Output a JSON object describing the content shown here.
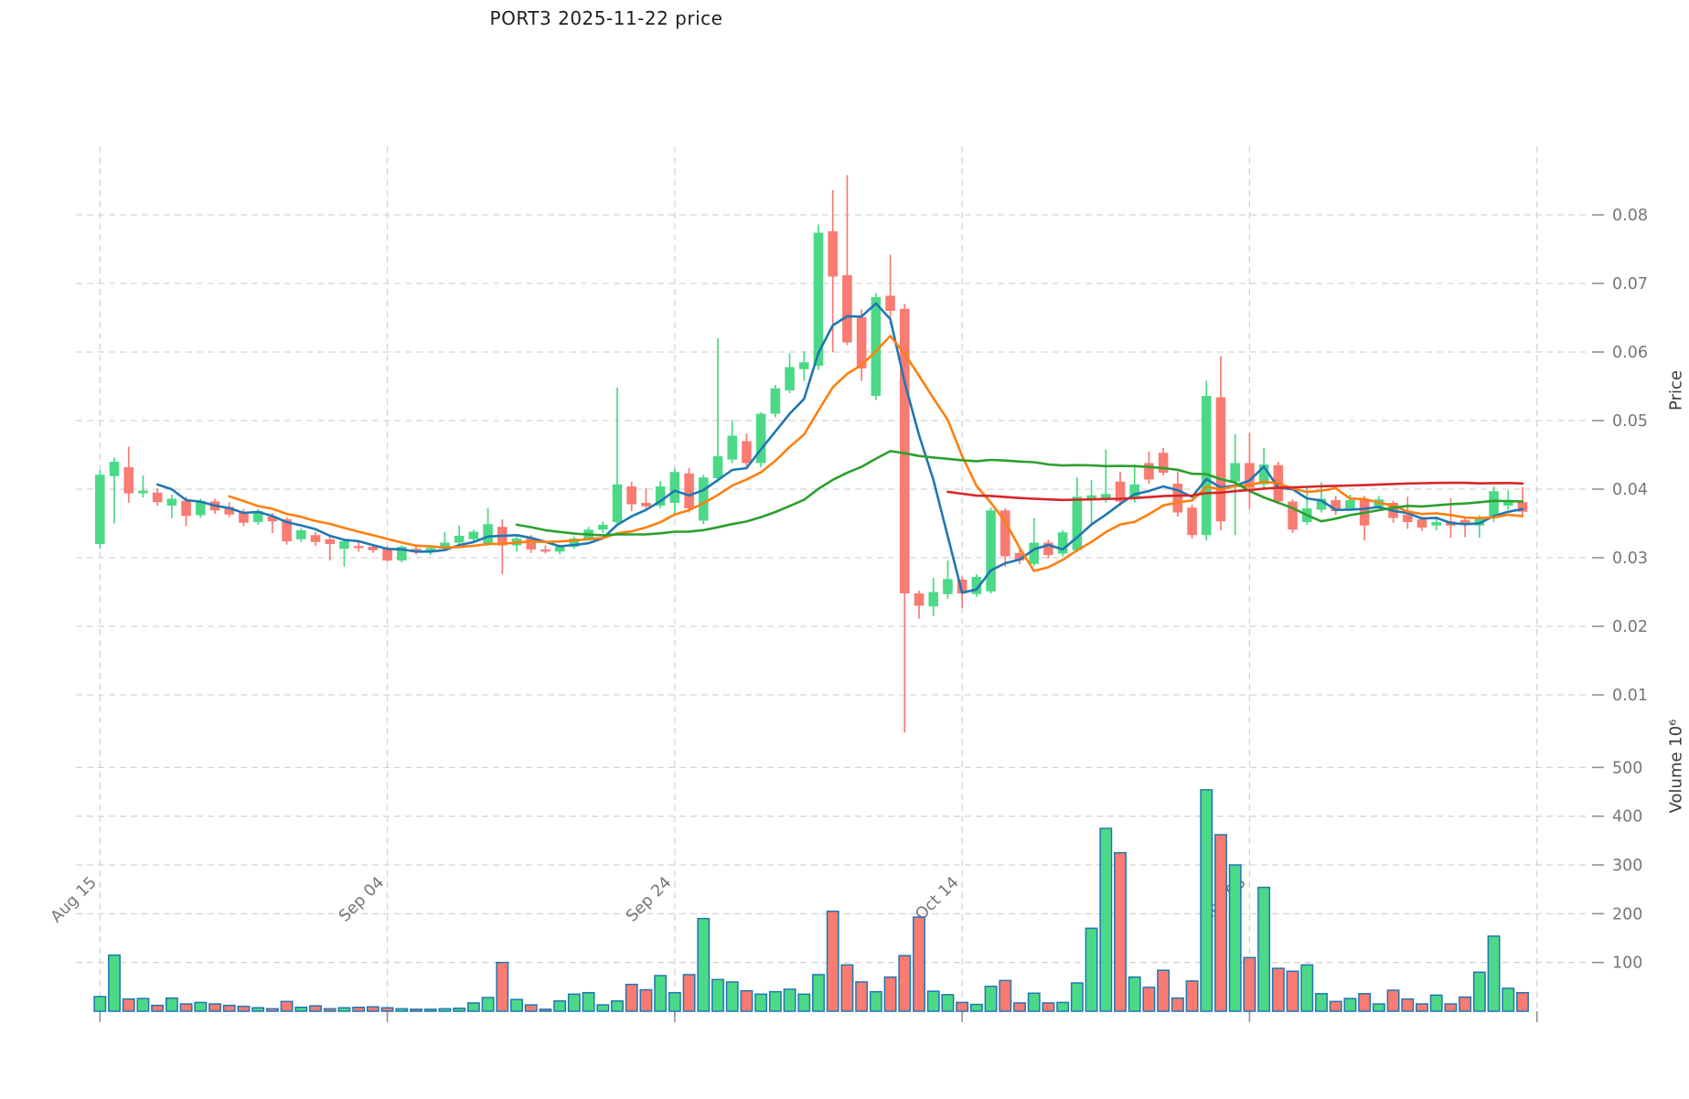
{
  "chart_data": {
    "type": "candlestick",
    "title": "PORT3  2025-11-22  price",
    "price_axis": {
      "label": "Price",
      "ticks": [
        0.01,
        0.02,
        0.03,
        0.04,
        0.05,
        0.06,
        0.07,
        0.08
      ]
    },
    "volume_axis": {
      "label": "Volume  10⁶",
      "ticks": [
        100,
        200,
        300,
        400,
        500
      ]
    },
    "x_axis": {
      "tick_labels": [
        "Aug 15",
        "Sep 04",
        "Sep 24",
        "Oct 14",
        "Nov 03"
      ],
      "tick_every": 20,
      "extra_gridline_index": 100
    },
    "moving_averages": [
      {
        "period": 5,
        "color": "#1f77b4"
      },
      {
        "period": 10,
        "color": "#ff7f0e"
      },
      {
        "period": 30,
        "color": "#2ca02c"
      },
      {
        "period": 60,
        "color": "#d62728"
      }
    ],
    "colors": {
      "up": "#4cd987",
      "down": "#f97b72",
      "bar_edge": "#1f77b4",
      "grid": "#d5d5d5",
      "tick_text": "#767676",
      "tick_mark": "#8f8f8f"
    },
    "candles": {
      "open": [
        0.032,
        0.0419,
        0.0432,
        0.0394,
        0.0395,
        0.0376,
        0.0383,
        0.0362,
        0.0382,
        0.0374,
        0.0366,
        0.0352,
        0.036,
        0.0356,
        0.0327,
        0.0333,
        0.0327,
        0.0313,
        0.0317,
        0.0316,
        0.0313,
        0.0296,
        0.0313,
        0.0308,
        0.0315,
        0.0322,
        0.0327,
        0.032,
        0.0345,
        0.0318,
        0.0328,
        0.0312,
        0.0309,
        0.0316,
        0.0328,
        0.0341,
        0.0352,
        0.0404,
        0.038,
        0.0376,
        0.038,
        0.0423,
        0.0354,
        0.0416,
        0.0443,
        0.047,
        0.0438,
        0.051,
        0.0544,
        0.0575,
        0.058,
        0.0776,
        0.0712,
        0.0651,
        0.0536,
        0.0682,
        0.0663,
        0.0248,
        0.0229,
        0.0247,
        0.0268,
        0.0247,
        0.0251,
        0.0369,
        0.0307,
        0.0291,
        0.0322,
        0.0306,
        0.0311,
        0.0385,
        0.0386,
        0.0411,
        0.0386,
        0.0438,
        0.0453,
        0.0408,
        0.0373,
        0.0333,
        0.0534,
        0.0411,
        0.0438,
        0.0407,
        0.0435,
        0.0382,
        0.0352,
        0.037,
        0.0384,
        0.0371,
        0.0384,
        0.0375,
        0.038,
        0.0363,
        0.0356,
        0.0347,
        0.0353,
        0.0355,
        0.0347,
        0.0358,
        0.0376,
        0.0381
      ],
      "high": [
        0.0428,
        0.0446,
        0.0462,
        0.042,
        0.0401,
        0.0392,
        0.0389,
        0.0386,
        0.0386,
        0.0381,
        0.0371,
        0.0371,
        0.0365,
        0.0359,
        0.0343,
        0.0338,
        0.0331,
        0.0327,
        0.0323,
        0.032,
        0.0317,
        0.0318,
        0.0316,
        0.0317,
        0.0338,
        0.0347,
        0.0341,
        0.0373,
        0.0356,
        0.0331,
        0.0333,
        0.0318,
        0.0319,
        0.0331,
        0.0345,
        0.0353,
        0.0548,
        0.0411,
        0.0401,
        0.0412,
        0.043,
        0.0431,
        0.0421,
        0.062,
        0.0501,
        0.0481,
        0.0512,
        0.0552,
        0.0598,
        0.0601,
        0.0786,
        0.0836,
        0.0858,
        0.0662,
        0.0686,
        0.0742,
        0.067,
        0.0252,
        0.0271,
        0.0296,
        0.0272,
        0.0276,
        0.0373,
        0.0372,
        0.0312,
        0.0358,
        0.0326,
        0.034,
        0.0417,
        0.0413,
        0.0458,
        0.0425,
        0.0436,
        0.0455,
        0.046,
        0.0426,
        0.0378,
        0.0558,
        0.0594,
        0.048,
        0.0482,
        0.046,
        0.044,
        0.0385,
        0.0404,
        0.041,
        0.039,
        0.0392,
        0.039,
        0.039,
        0.0383,
        0.0389,
        0.036,
        0.036,
        0.0387,
        0.0358,
        0.0362,
        0.0404,
        0.0398,
        0.0403
      ],
      "low": [
        0.0313,
        0.035,
        0.038,
        0.0388,
        0.0376,
        0.0358,
        0.0346,
        0.0358,
        0.0364,
        0.0359,
        0.0346,
        0.0348,
        0.0336,
        0.0319,
        0.0323,
        0.0317,
        0.0296,
        0.0287,
        0.0309,
        0.0307,
        0.0294,
        0.0293,
        0.0305,
        0.0304,
        0.0312,
        0.0319,
        0.0323,
        0.0317,
        0.0276,
        0.0309,
        0.0307,
        0.0306,
        0.0305,
        0.0313,
        0.0325,
        0.0336,
        0.0348,
        0.0368,
        0.0372,
        0.0372,
        0.0364,
        0.0366,
        0.0349,
        0.041,
        0.0438,
        0.0429,
        0.0432,
        0.0505,
        0.054,
        0.0558,
        0.0574,
        0.06,
        0.061,
        0.0558,
        0.053,
        0.064,
        0.0045,
        0.0211,
        0.0215,
        0.024,
        0.0227,
        0.0243,
        0.0248,
        0.0287,
        0.0291,
        0.0288,
        0.0299,
        0.0302,
        0.0308,
        0.0346,
        0.038,
        0.0376,
        0.038,
        0.0408,
        0.042,
        0.036,
        0.0328,
        0.0325,
        0.034,
        0.0333,
        0.0371,
        0.04,
        0.0378,
        0.0336,
        0.0348,
        0.0366,
        0.0362,
        0.0368,
        0.0325,
        0.037,
        0.0351,
        0.0342,
        0.0339,
        0.034,
        0.0329,
        0.033,
        0.0329,
        0.0352,
        0.037,
        0.0362
      ],
      "close": [
        0.0421,
        0.044,
        0.0394,
        0.0398,
        0.0381,
        0.0386,
        0.0361,
        0.0383,
        0.0369,
        0.0363,
        0.0351,
        0.0368,
        0.0353,
        0.0324,
        0.034,
        0.0323,
        0.032,
        0.0324,
        0.0314,
        0.0311,
        0.0296,
        0.0316,
        0.0308,
        0.0314,
        0.0322,
        0.0332,
        0.0338,
        0.0349,
        0.0318,
        0.0328,
        0.0312,
        0.0309,
        0.0316,
        0.0328,
        0.0341,
        0.0348,
        0.0407,
        0.0378,
        0.0375,
        0.0404,
        0.0425,
        0.0372,
        0.0417,
        0.0448,
        0.0478,
        0.0438,
        0.051,
        0.0547,
        0.0578,
        0.0585,
        0.0774,
        0.071,
        0.0614,
        0.0576,
        0.068,
        0.066,
        0.0248,
        0.023,
        0.025,
        0.0269,
        0.0248,
        0.0272,
        0.0369,
        0.0302,
        0.0296,
        0.0322,
        0.0304,
        0.0337,
        0.0389,
        0.0391,
        0.0393,
        0.0382,
        0.0407,
        0.0414,
        0.0424,
        0.0366,
        0.0333,
        0.0536,
        0.0353,
        0.0438,
        0.0402,
        0.0436,
        0.0382,
        0.0341,
        0.0372,
        0.0386,
        0.0368,
        0.0384,
        0.0347,
        0.0385,
        0.0358,
        0.0352,
        0.0344,
        0.0352,
        0.0347,
        0.035,
        0.0358,
        0.0397,
        0.0383,
        0.0367
      ],
      "volume_millions": [
        30,
        115,
        25,
        26,
        12,
        27,
        15,
        18,
        15,
        12,
        10,
        7,
        5,
        20,
        8,
        11,
        5,
        7,
        8,
        9,
        7,
        5,
        4,
        4,
        5,
        6,
        17,
        28,
        100,
        24,
        13,
        4,
        21,
        35,
        38,
        13,
        21,
        55,
        44,
        73,
        38,
        75,
        190,
        65,
        60,
        42,
        35,
        40,
        45,
        35,
        75,
        205,
        95,
        60,
        40,
        70,
        114,
        193,
        41,
        34,
        18,
        14,
        51,
        63,
        17,
        37,
        17,
        18,
        58,
        170,
        375,
        325,
        70,
        49,
        84,
        27,
        62,
        454,
        362,
        300,
        110,
        254,
        88,
        82,
        95,
        36,
        20,
        26,
        36,
        15,
        43,
        25,
        15,
        33,
        15,
        29,
        80,
        154,
        47,
        38
      ]
    }
  }
}
